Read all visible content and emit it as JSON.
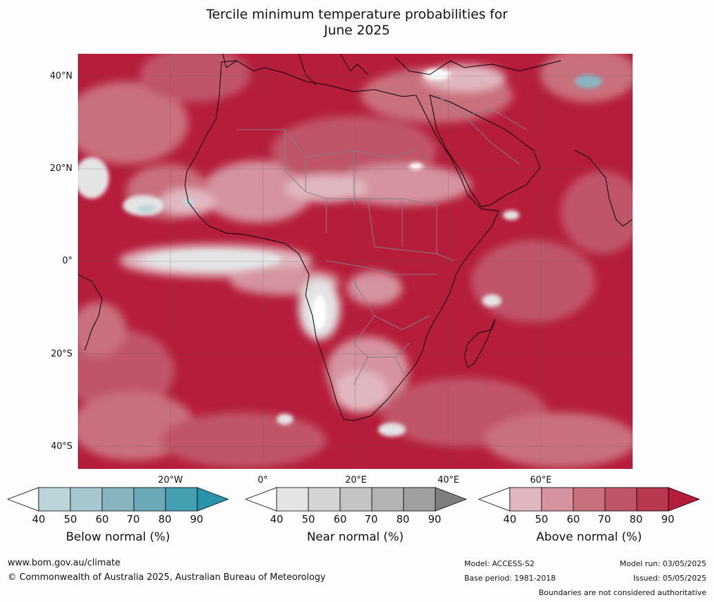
{
  "title": {
    "line1": "Tercile minimum temperature probabilities for",
    "line2": "June 2025"
  },
  "map": {
    "lat_labels": [
      "40°N",
      "20°N",
      "0°",
      "20°S",
      "40°S"
    ],
    "lon_labels": [
      "20°W",
      "0°",
      "20°E",
      "40°E",
      "60°E"
    ],
    "colors": {
      "land_outline": "#000000",
      "borders": "#808080",
      "gridlines": "#555555"
    }
  },
  "legends": [
    {
      "label": "Below normal (%)",
      "ticks": [
        "40",
        "50",
        "60",
        "70",
        "80",
        "90"
      ],
      "colors": [
        "#ffffff",
        "#bdd4db",
        "#a6c7ce",
        "#88b4c0",
        "#6aa9b5",
        "#44a0b1",
        "#2893ab"
      ]
    },
    {
      "label": "Near normal (%)",
      "ticks": [
        "40",
        "50",
        "60",
        "70",
        "80",
        "90"
      ],
      "colors": [
        "#ffffff",
        "#e4e4e4",
        "#d4d4d4",
        "#c4c4c4",
        "#b3b3b3",
        "#a0a0a0",
        "#7e7e7e"
      ]
    },
    {
      "label": "Above normal (%)",
      "ticks": [
        "40",
        "50",
        "60",
        "70",
        "80",
        "90"
      ],
      "colors": [
        "#ffffff",
        "#e1b7bf",
        "#d4939e",
        "#c9707d",
        "#c05569",
        "#b8384f",
        "#b51d3b"
      ]
    }
  ],
  "footer": {
    "url": "www.bom.gov.au/climate",
    "copyright": "© Commonwealth of Australia 2025, Australian Bureau of Meteorology",
    "model": "Model: ACCESS-S2",
    "base_period": "Base period: 1981-2018",
    "model_run": "Model run: 03/05/2025",
    "issued": "Issued: 05/05/2025",
    "disclaimer": "Boundaries are not considered authoritative"
  }
}
